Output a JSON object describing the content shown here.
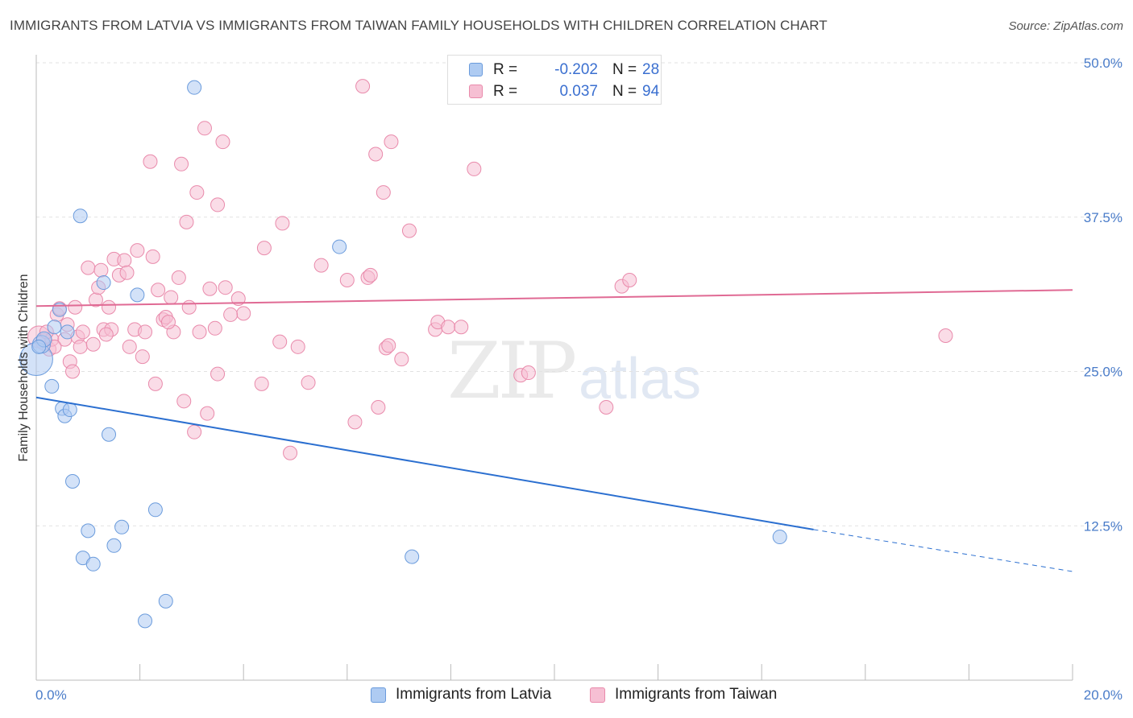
{
  "title": "IMMIGRANTS FROM LATVIA VS IMMIGRANTS FROM TAIWAN FAMILY HOUSEHOLDS WITH CHILDREN CORRELATION CHART",
  "source": "Source: ZipAtlas.com",
  "watermark": {
    "zip": "ZIP",
    "atlas": "atlas"
  },
  "legend": [
    {
      "r_label": "R =",
      "r_value": "-0.202",
      "n_label": "N =",
      "n_value": "28"
    },
    {
      "r_label": "R =",
      "r_value": "0.037",
      "n_label": "N =",
      "n_value": "94"
    }
  ],
  "bottom_legend": [
    "Immigrants from Latvia",
    "Immigrants from Taiwan"
  ],
  "colors": {
    "latvia_fill": "#aecbf2",
    "latvia_stroke": "#6a9bdc",
    "latvia_line": "#2b6fd0",
    "taiwan_fill": "#f6bfd3",
    "taiwan_stroke": "#e98aab",
    "taiwan_line": "#e06a94",
    "grid": "#e2e2e2",
    "tick": "#4a7cc9"
  },
  "chart_data": {
    "type": "scatter",
    "title": "IMMIGRANTS FROM LATVIA VS IMMIGRANTS FROM TAIWAN FAMILY HOUSEHOLDS WITH CHILDREN CORRELATION CHART",
    "xlabel": "",
    "ylabel": "Family Households with Children",
    "xlim": [
      0,
      20
    ],
    "ylim": [
      0,
      50
    ],
    "x_tick_labels": [
      "0.0%",
      "20.0%"
    ],
    "y_ticks": [
      12.5,
      25.0,
      37.5,
      50.0
    ],
    "y_tick_labels": [
      "12.5%",
      "25.0%",
      "37.5%",
      "50.0%"
    ],
    "series": [
      {
        "name": "Immigrants from Latvia",
        "r": -0.202,
        "n": 28,
        "trend": {
          "x": [
            0,
            15.0
          ],
          "y": [
            22.9,
            12.2
          ],
          "dashed_to": [
            20.0,
            8.8
          ]
        },
        "points": [
          [
            0.0,
            26.0,
            2.4
          ],
          [
            0.1,
            27.2,
            1.3
          ],
          [
            0.15,
            27.6,
            1.1
          ],
          [
            0.3,
            23.8,
            1.0
          ],
          [
            0.35,
            28.6,
            1.0
          ],
          [
            0.45,
            30.0,
            1.0
          ],
          [
            0.5,
            22.0,
            1.0
          ],
          [
            0.55,
            21.4,
            1.0
          ],
          [
            0.6,
            28.2,
            1.0
          ],
          [
            0.65,
            21.9,
            1.0
          ],
          [
            0.7,
            16.1,
            1.0
          ],
          [
            0.85,
            37.6,
            1.0
          ],
          [
            0.9,
            9.9,
            1.0
          ],
          [
            1.0,
            12.1,
            1.0
          ],
          [
            1.1,
            9.4,
            1.0
          ],
          [
            1.3,
            32.2,
            1.0
          ],
          [
            1.4,
            19.9,
            1.0
          ],
          [
            1.5,
            10.9,
            1.0
          ],
          [
            1.65,
            12.4,
            1.0
          ],
          [
            1.95,
            31.2,
            1.0
          ],
          [
            2.1,
            4.8,
            1.0
          ],
          [
            2.3,
            13.8,
            1.0
          ],
          [
            2.5,
            6.4,
            1.0
          ],
          [
            3.05,
            48.0,
            1.0
          ],
          [
            5.85,
            35.1,
            1.0
          ],
          [
            7.25,
            10.0,
            1.0
          ],
          [
            14.35,
            11.6,
            1.0
          ],
          [
            0.05,
            27.0,
            1.0
          ]
        ]
      },
      {
        "name": "Immigrants from Taiwan",
        "r": 0.037,
        "n": 94,
        "trend": {
          "x": [
            0,
            20.0
          ],
          "y": [
            30.3,
            31.6
          ]
        },
        "points": [
          [
            0.05,
            27.8,
            1.6
          ],
          [
            0.15,
            27.4,
            1.2
          ],
          [
            0.25,
            26.8,
            1.0
          ],
          [
            0.3,
            27.6,
            1.0
          ],
          [
            0.4,
            29.6,
            1.0
          ],
          [
            0.45,
            30.1,
            1.0
          ],
          [
            0.55,
            27.6,
            1.0
          ],
          [
            0.6,
            28.8,
            1.0
          ],
          [
            0.65,
            25.8,
            1.0
          ],
          [
            0.7,
            25.0,
            1.0
          ],
          [
            0.75,
            30.2,
            1.0
          ],
          [
            0.8,
            27.8,
            1.0
          ],
          [
            0.85,
            27.0,
            1.0
          ],
          [
            0.9,
            28.2,
            1.0
          ],
          [
            1.0,
            33.4,
            1.0
          ],
          [
            1.1,
            27.2,
            1.0
          ],
          [
            1.15,
            30.8,
            1.0
          ],
          [
            1.2,
            31.8,
            1.0
          ],
          [
            1.25,
            33.2,
            1.0
          ],
          [
            1.3,
            28.4,
            1.0
          ],
          [
            1.4,
            30.2,
            1.0
          ],
          [
            1.45,
            28.4,
            1.0
          ],
          [
            1.5,
            34.1,
            1.0
          ],
          [
            1.6,
            32.8,
            1.0
          ],
          [
            1.7,
            34.0,
            1.0
          ],
          [
            1.75,
            33.0,
            1.0
          ],
          [
            1.8,
            27.0,
            1.0
          ],
          [
            1.9,
            28.4,
            1.0
          ],
          [
            1.95,
            34.8,
            1.0
          ],
          [
            2.05,
            26.2,
            1.0
          ],
          [
            2.1,
            28.2,
            1.0
          ],
          [
            2.2,
            42.0,
            1.0
          ],
          [
            2.25,
            34.3,
            1.0
          ],
          [
            2.3,
            24.0,
            1.0
          ],
          [
            2.35,
            31.6,
            1.0
          ],
          [
            2.45,
            29.2,
            1.0
          ],
          [
            2.5,
            29.4,
            1.0
          ],
          [
            2.6,
            31.0,
            1.0
          ],
          [
            2.65,
            28.2,
            1.0
          ],
          [
            2.75,
            32.6,
            1.0
          ],
          [
            2.8,
            41.8,
            1.0
          ],
          [
            2.85,
            22.6,
            1.0
          ],
          [
            2.9,
            37.1,
            1.0
          ],
          [
            2.95,
            30.2,
            1.0
          ],
          [
            3.05,
            20.1,
            1.0
          ],
          [
            3.1,
            39.5,
            1.0
          ],
          [
            3.15,
            28.2,
            1.0
          ],
          [
            3.25,
            44.7,
            1.0
          ],
          [
            3.3,
            21.6,
            1.0
          ],
          [
            3.35,
            31.7,
            1.0
          ],
          [
            3.45,
            28.5,
            1.0
          ],
          [
            3.5,
            24.8,
            1.0
          ],
          [
            3.5,
            38.5,
            1.0
          ],
          [
            3.6,
            43.6,
            1.0
          ],
          [
            3.65,
            31.8,
            1.0
          ],
          [
            3.9,
            30.9,
            1.0
          ],
          [
            4.0,
            29.7,
            1.0
          ],
          [
            4.35,
            24.0,
            1.0
          ],
          [
            4.4,
            35.0,
            1.0
          ],
          [
            4.7,
            27.4,
            1.0
          ],
          [
            4.75,
            37.0,
            1.0
          ],
          [
            4.9,
            18.4,
            1.0
          ],
          [
            5.05,
            27.0,
            1.0
          ],
          [
            5.25,
            24.1,
            1.0
          ],
          [
            5.5,
            33.6,
            1.0
          ],
          [
            6.0,
            32.4,
            1.0
          ],
          [
            6.15,
            20.9,
            1.0
          ],
          [
            6.3,
            48.1,
            1.0
          ],
          [
            6.4,
            32.6,
            1.0
          ],
          [
            6.45,
            32.8,
            1.0
          ],
          [
            6.55,
            42.6,
            1.0
          ],
          [
            6.6,
            22.1,
            1.0
          ],
          [
            6.7,
            39.5,
            1.0
          ],
          [
            6.75,
            26.9,
            1.0
          ],
          [
            6.8,
            27.1,
            1.0
          ],
          [
            6.85,
            43.6,
            1.0
          ],
          [
            7.05,
            26.0,
            1.0
          ],
          [
            7.2,
            36.4,
            1.0
          ],
          [
            7.7,
            28.4,
            1.0
          ],
          [
            7.75,
            29.0,
            1.0
          ],
          [
            7.95,
            28.6,
            1.0
          ],
          [
            8.2,
            28.6,
            1.0
          ],
          [
            8.45,
            41.4,
            1.0
          ],
          [
            9.35,
            24.7,
            1.0
          ],
          [
            9.5,
            24.9,
            1.0
          ],
          [
            11.0,
            22.1,
            1.0
          ],
          [
            11.3,
            31.9,
            1.0
          ],
          [
            11.45,
            32.4,
            1.0
          ],
          [
            17.55,
            27.9,
            1.0
          ],
          [
            0.2,
            28.2,
            1.0
          ],
          [
            0.35,
            27.0,
            1.0
          ],
          [
            1.35,
            28.0,
            1.0
          ],
          [
            2.55,
            29.0,
            1.0
          ],
          [
            3.75,
            29.6,
            1.0
          ]
        ]
      }
    ]
  }
}
